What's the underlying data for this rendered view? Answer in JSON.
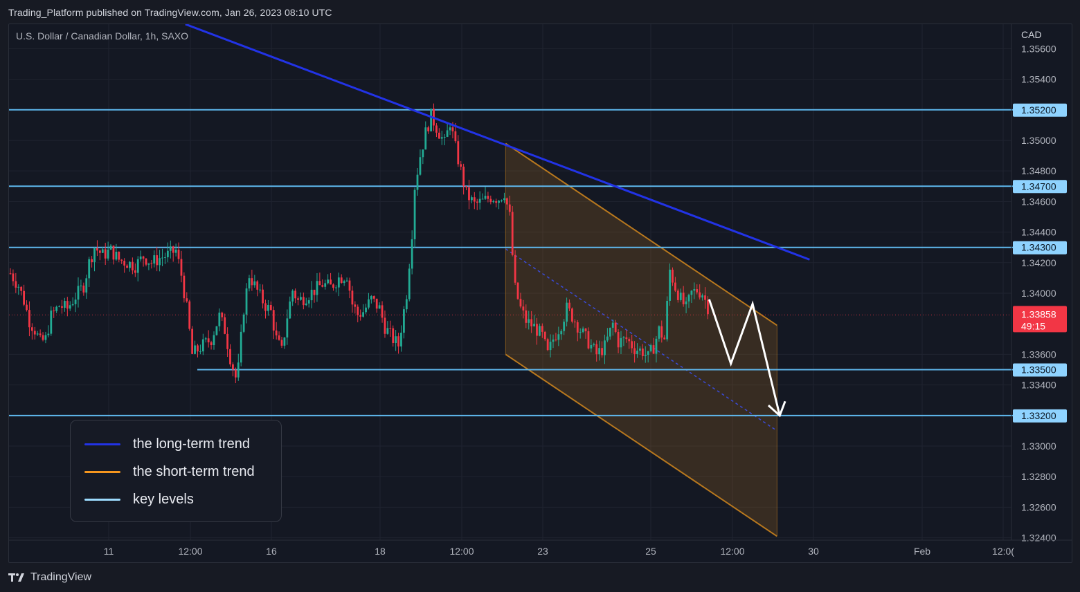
{
  "header": {
    "publish_line": "Trading_Platform published on TradingView.com, Jan 26, 2023 08:10 UTC"
  },
  "chart_header": {
    "symbol_line": "U.S. Dollar / Canadian Dollar, 1h, SAXO",
    "currency": "CAD"
  },
  "legend": {
    "items": [
      {
        "label": "the long-term trend",
        "color": "#2233e6"
      },
      {
        "label": "the short-term trend",
        "color": "#f5961e"
      },
      {
        "label": "key levels",
        "color": "#9ddcff"
      }
    ]
  },
  "footer": {
    "brand": "TradingView"
  },
  "colors": {
    "background": "#141823",
    "up_candle": "#22ab94",
    "down_candle": "#f23645",
    "key_level": "#5fb8ee",
    "long_trend": "#2233e6",
    "channel": "#b8781e",
    "price_badge": "#f23645"
  },
  "chart_data": {
    "type": "candlestick",
    "symbol": "USDCAD",
    "timeframe": "1h",
    "ylim": [
      1.3224,
      1.3576
    ],
    "y_ticks": [
      "1.35600",
      "1.35400",
      "1.35000",
      "1.34800",
      "1.34600",
      "1.34400",
      "1.34200",
      "1.34000",
      "1.33600",
      "1.33400",
      "1.33000",
      "1.32800",
      "1.32600",
      "1.32400"
    ],
    "x_ticks": [
      "11",
      "12:00",
      "16",
      "18",
      "12:00",
      "23",
      "25",
      "12:00",
      "30",
      "Feb",
      "12:0("
    ],
    "key_levels": [
      {
        "label": "1.35200",
        "value": 1.352
      },
      {
        "label": "1.34700",
        "value": 1.347
      },
      {
        "label": "1.34300",
        "value": 1.343
      },
      {
        "label": "1.33500",
        "value": 1.335
      },
      {
        "label": "1.33200",
        "value": 1.332
      }
    ],
    "current_price": {
      "label": "1.33858",
      "value": 1.33858,
      "countdown": "49:15"
    },
    "long_term_trend": [
      {
        "bar": 65,
        "price": 1.3576
      },
      {
        "bar": 295,
        "price": 1.3422
      }
    ],
    "short_term_channel": {
      "upper": [
        {
          "bar": 183,
          "price": 1.3498
        },
        {
          "bar": 283,
          "price": 1.3379
        }
      ],
      "lower": [
        {
          "bar": 183,
          "price": 1.336
        },
        {
          "bar": 283,
          "price": 1.3241
        }
      ]
    },
    "projected_path": [
      {
        "bar": 258,
        "price": 1.3396
      },
      {
        "bar": 266,
        "price": 1.3354
      },
      {
        "bar": 274,
        "price": 1.3393
      },
      {
        "bar": 284,
        "price": 1.332
      }
    ],
    "price_path": [
      [
        0,
        1.3413
      ],
      [
        3,
        1.3405
      ],
      [
        5,
        1.3395
      ],
      [
        7,
        1.3382
      ],
      [
        9,
        1.3376
      ],
      [
        11,
        1.3368
      ],
      [
        13,
        1.337
      ],
      [
        15,
        1.3385
      ],
      [
        18,
        1.3392
      ],
      [
        21,
        1.339
      ],
      [
        24,
        1.3398
      ],
      [
        27,
        1.3405
      ],
      [
        29,
        1.342
      ],
      [
        31,
        1.343
      ],
      [
        34,
        1.3425
      ],
      [
        37,
        1.3428
      ],
      [
        40,
        1.3422
      ],
      [
        43,
        1.342
      ],
      [
        46,
        1.3418
      ],
      [
        49,
        1.3424
      ],
      [
        52,
        1.342
      ],
      [
        55,
        1.3423
      ],
      [
        58,
        1.3425
      ],
      [
        61,
        1.3428
      ],
      [
        63,
        1.3412
      ],
      [
        65,
        1.339
      ],
      [
        67,
        1.336
      ],
      [
        69,
        1.3363
      ],
      [
        71,
        1.3366
      ],
      [
        74,
        1.337
      ],
      [
        77,
        1.3385
      ],
      [
        79,
        1.3376
      ],
      [
        81,
        1.3358
      ],
      [
        83,
        1.3345
      ],
      [
        84,
        1.3351
      ],
      [
        86,
        1.339
      ],
      [
        88,
        1.3412
      ],
      [
        90,
        1.3405
      ],
      [
        92,
        1.3398
      ],
      [
        94,
        1.3392
      ],
      [
        96,
        1.3388
      ],
      [
        98,
        1.337
      ],
      [
        100,
        1.3362
      ],
      [
        102,
        1.3385
      ],
      [
        104,
        1.3402
      ],
      [
        106,
        1.3395
      ],
      [
        109,
        1.3398
      ],
      [
        112,
        1.3402
      ],
      [
        115,
        1.3406
      ],
      [
        118,
        1.3404
      ],
      [
        121,
        1.341
      ],
      [
        124,
        1.3412
      ],
      [
        126,
        1.3393
      ],
      [
        128,
        1.3386
      ],
      [
        130,
        1.3388
      ],
      [
        133,
        1.3396
      ],
      [
        136,
        1.339
      ],
      [
        138,
        1.3378
      ],
      [
        141,
        1.337
      ],
      [
        143,
        1.3366
      ],
      [
        146,
        1.34
      ],
      [
        148,
        1.344
      ],
      [
        149,
        1.347
      ],
      [
        151,
        1.349
      ],
      [
        153,
        1.3505
      ],
      [
        155,
        1.3516
      ],
      [
        158,
        1.3505
      ],
      [
        160,
        1.3498
      ],
      [
        162,
        1.3512
      ],
      [
        164,
        1.3495
      ],
      [
        166,
        1.348
      ],
      [
        168,
        1.3465
      ],
      [
        171,
        1.3458
      ],
      [
        174,
        1.346
      ],
      [
        177,
        1.3463
      ],
      [
        180,
        1.3462
      ],
      [
        182,
        1.3466
      ],
      [
        184,
        1.345
      ],
      [
        185,
        1.3425
      ],
      [
        186,
        1.3403
      ],
      [
        188,
        1.339
      ],
      [
        190,
        1.3382
      ],
      [
        193,
        1.3378
      ],
      [
        196,
        1.3372
      ],
      [
        198,
        1.336
      ],
      [
        200,
        1.337
      ],
      [
        203,
        1.338
      ],
      [
        205,
        1.339
      ],
      [
        207,
        1.3385
      ],
      [
        210,
        1.3376
      ],
      [
        213,
        1.3368
      ],
      [
        216,
        1.336
      ],
      [
        219,
        1.3365
      ],
      [
        222,
        1.338
      ],
      [
        224,
        1.3368
      ],
      [
        227,
        1.337
      ],
      [
        230,
        1.3364
      ],
      [
        233,
        1.3362
      ],
      [
        235,
        1.3358
      ],
      [
        237,
        1.3365
      ],
      [
        239,
        1.3376
      ],
      [
        241,
        1.337
      ],
      [
        243,
        1.3415
      ],
      [
        245,
        1.3404
      ],
      [
        247,
        1.3396
      ],
      [
        249,
        1.339
      ],
      [
        251,
        1.34
      ],
      [
        253,
        1.3402
      ],
      [
        255,
        1.34
      ],
      [
        257,
        1.3391
      ]
    ]
  }
}
